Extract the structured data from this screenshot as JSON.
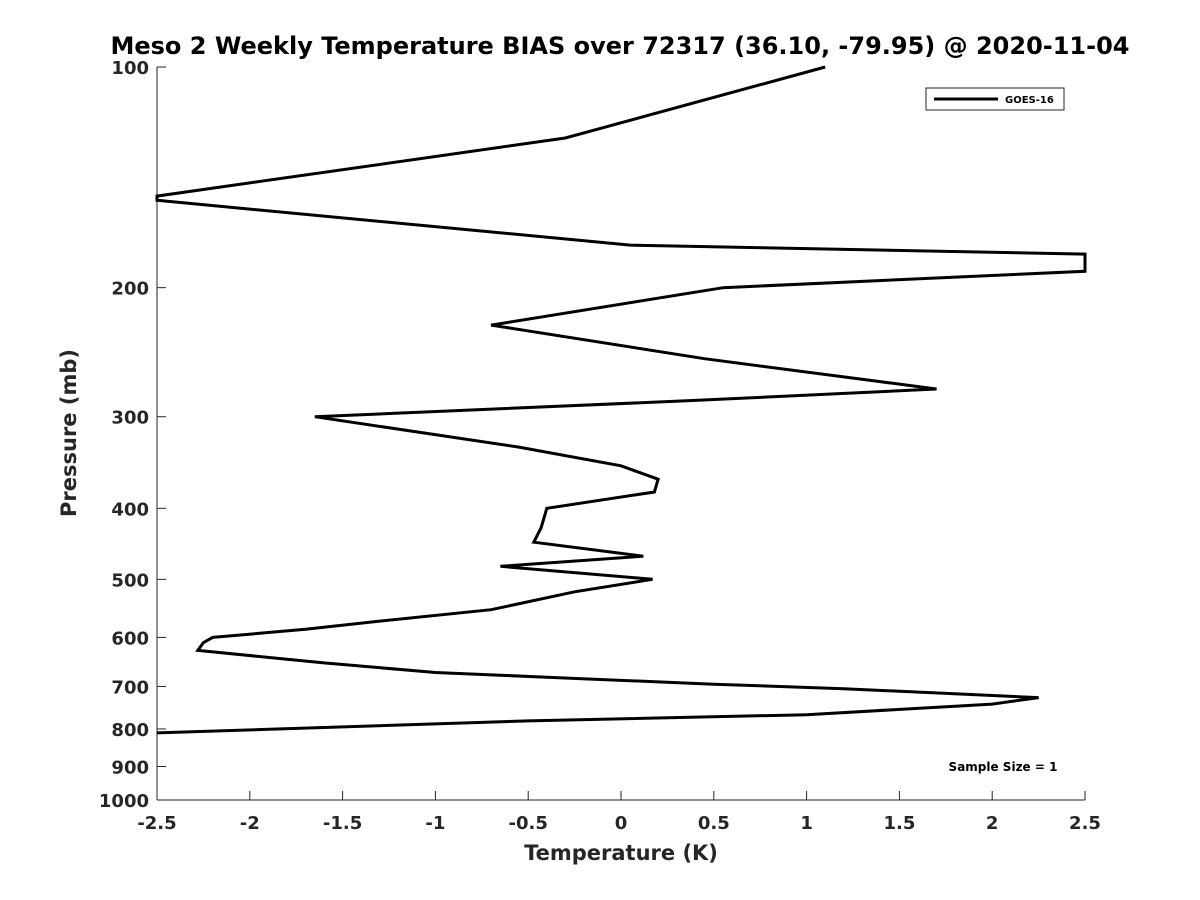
{
  "chart_data": {
    "type": "line",
    "title": "Meso 2 Weekly Temperature BIAS over 72317 (36.10, -79.95) @ 2020-11-04",
    "xlabel": "Temperature (K)",
    "ylabel": "Pressure (mb)",
    "xlim": [
      -2.5,
      2.5
    ],
    "ylim": [
      100,
      1000
    ],
    "y_scale": "log",
    "y_reversed": true,
    "x_ticks": [
      "-2.5",
      "-2",
      "-1.5",
      "-1",
      "-0.5",
      "0",
      "0.5",
      "1",
      "1.5",
      "2",
      "2.5"
    ],
    "y_ticks": [
      "100",
      "200",
      "300",
      "400",
      "500",
      "600",
      "700",
      "800",
      "900",
      "1000"
    ],
    "grid": false,
    "legend_position": "top-right",
    "series": [
      {
        "name": "GOES-16",
        "color": "#000000",
        "points": [
          [
            1.1,
            100
          ],
          [
            -0.3,
            125
          ],
          [
            -2.5,
            150
          ],
          [
            -2.5,
            152
          ],
          [
            0.05,
            175
          ],
          [
            2.5,
            180
          ],
          [
            2.5,
            190
          ],
          [
            0.55,
            200
          ],
          [
            -0.7,
            225
          ],
          [
            0.45,
            250
          ],
          [
            1.7,
            275
          ],
          [
            0.4,
            285
          ],
          [
            -1.65,
            300
          ],
          [
            -0.55,
            330
          ],
          [
            0.0,
            350
          ],
          [
            0.2,
            365
          ],
          [
            0.18,
            380
          ],
          [
            -0.4,
            400
          ],
          [
            -0.43,
            425
          ],
          [
            -0.47,
            445
          ],
          [
            0.12,
            465
          ],
          [
            -0.65,
            480
          ],
          [
            0.17,
            500
          ],
          [
            -0.25,
            520
          ],
          [
            -0.7,
            550
          ],
          [
            -1.3,
            570
          ],
          [
            -1.7,
            585
          ],
          [
            -2.2,
            600
          ],
          [
            -2.25,
            610
          ],
          [
            -2.28,
            625
          ],
          [
            -1.6,
            650
          ],
          [
            -1.0,
            670
          ],
          [
            -0.4,
            680
          ],
          [
            0.5,
            695
          ],
          [
            1.2,
            705
          ],
          [
            2.25,
            725
          ],
          [
            2.0,
            740
          ],
          [
            1.0,
            765
          ],
          [
            -0.5,
            780
          ],
          [
            -2.5,
            810
          ]
        ]
      }
    ],
    "annotations": [
      "Sample Size = 1"
    ]
  }
}
